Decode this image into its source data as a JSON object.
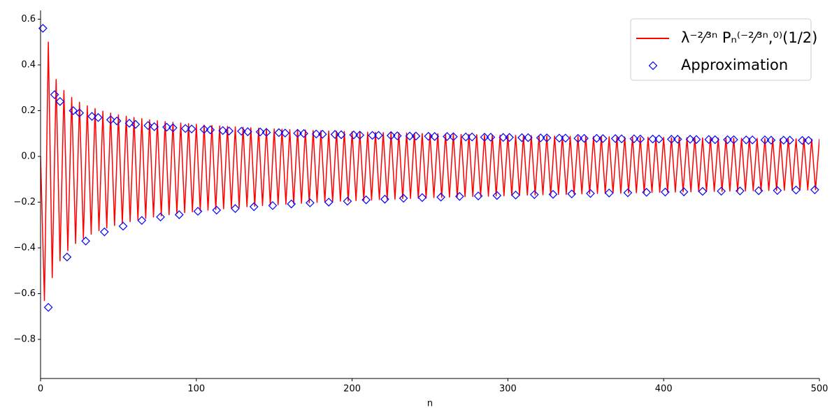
{
  "chart_data": {
    "type": "line",
    "xlabel": "n",
    "xlim": [
      0,
      500
    ],
    "xticks": [
      0,
      100,
      200,
      300,
      400,
      500
    ],
    "ylim": [
      -0.971,
      0.638
    ],
    "yticks": [
      {
        "value": -0.8,
        "label": "−0.8"
      },
      {
        "value": -0.6,
        "label": "−0.6"
      },
      {
        "value": -0.4,
        "label": "−0.4"
      },
      {
        "value": -0.2,
        "label": "−0.2"
      },
      {
        "value": 0,
        "label": "0.0"
      },
      0.2,
      0.4,
      0.6
    ],
    "legend": "upper right",
    "series": [
      {
        "name": "λ⁻²⁄³ⁿ Pₙ⁽⁻²⁄³ⁿ,⁰⁾(1/2)",
        "color": "#ff0000",
        "style": "line",
        "x": [
          0,
          2.5,
          5,
          7.5,
          10,
          12.5,
          15,
          17.5,
          20,
          22.5,
          25,
          27.5,
          30,
          32.5,
          35,
          37.5,
          40,
          42.5,
          45,
          47.5,
          50,
          52.5,
          55,
          57.5,
          60,
          62.5,
          65,
          67.5,
          70,
          72.5,
          75,
          77.5,
          80,
          82.5,
          85,
          87.5,
          90,
          92.5,
          95,
          97.5,
          100,
          102.5,
          105,
          107.5,
          110,
          112.5,
          115,
          117.5,
          120,
          122.5,
          125,
          127.5,
          130,
          132.5,
          135,
          137.5,
          140,
          142.5,
          145,
          147.5,
          150,
          152.5,
          155,
          157.5,
          160,
          162.5,
          165,
          167.5,
          170,
          172.5,
          175,
          177.5,
          180,
          182.5,
          185,
          187.5,
          190,
          192.5,
          195,
          197.5,
          200,
          202.5,
          205,
          207.5,
          210,
          212.5,
          215,
          217.5,
          220,
          222.5,
          225,
          227.5,
          230,
          232.5,
          235,
          237.5,
          240,
          242.5,
          245,
          247.5,
          250,
          252.5,
          255,
          257.5,
          260,
          262.5,
          265,
          267.5,
          270,
          272.5,
          275,
          277.5,
          280,
          282.5,
          285,
          287.5,
          290,
          292.5,
          295,
          297.5,
          300,
          302.5,
          305,
          307.5,
          310,
          312.5,
          315,
          317.5,
          320,
          322.5,
          325,
          327.5,
          330,
          332.5,
          335,
          337.5,
          340,
          342.5,
          345,
          347.5,
          350,
          352.5,
          355,
          357.5,
          360,
          362.5,
          365,
          367.5,
          370,
          372.5,
          375,
          377.5,
          380,
          382.5,
          385,
          387.5,
          390,
          392.5,
          395,
          397.5,
          400,
          402.5,
          405,
          407.5,
          410,
          412.5,
          415,
          417.5,
          420,
          422.5,
          425,
          427.5,
          430,
          432.5,
          435,
          437.5,
          440,
          442.5,
          445,
          447.5,
          450,
          452.5,
          455,
          457.5,
          460,
          462.5,
          465,
          467.5,
          470,
          472.5,
          475,
          477.5,
          480,
          482.5,
          485,
          487.5,
          490,
          492.5,
          495,
          497.5,
          500
        ],
        "values": [
          0,
          -0.63,
          0.5,
          -0.53,
          0.336,
          -0.457,
          0.288,
          -0.412,
          0.258,
          -0.381,
          0.237,
          -0.358,
          0.221,
          -0.34,
          0.209,
          -0.325,
          0.198,
          -0.313,
          0.189,
          -0.302,
          0.182,
          -0.293,
          0.176,
          -0.285,
          0.17,
          -0.277,
          0.165,
          -0.271,
          0.16,
          -0.265,
          0.156,
          -0.26,
          0.152,
          -0.255,
          0.149,
          -0.25,
          0.146,
          -0.246,
          0.143,
          -0.242,
          0.14,
          -0.238,
          0.137,
          -0.235,
          0.135,
          -0.232,
          0.133,
          -0.229,
          0.131,
          -0.226,
          0.129,
          -0.223,
          0.127,
          -0.22,
          0.125,
          -0.218,
          0.123,
          -0.215,
          0.122,
          -0.213,
          0.12,
          -0.211,
          0.119,
          -0.209,
          0.117,
          -0.207,
          0.116,
          -0.205,
          0.115,
          -0.203,
          0.113,
          -0.201,
          0.112,
          -0.199,
          0.111,
          -0.198,
          0.11,
          -0.196,
          0.109,
          -0.195,
          0.108,
          -0.193,
          0.107,
          -0.192,
          0.106,
          -0.191,
          0.105,
          -0.189,
          0.104,
          -0.188,
          0.104,
          -0.187,
          0.103,
          -0.185,
          0.102,
          -0.184,
          0.101,
          -0.183,
          0.1,
          -0.182,
          0.099,
          -0.18,
          0.099,
          -0.179,
          0.098,
          -0.178,
          0.097,
          -0.177,
          0.096,
          -0.176,
          0.096,
          -0.175,
          0.095,
          -0.174,
          0.094,
          -0.174,
          0.094,
          -0.173,
          0.093,
          -0.172,
          0.092,
          -0.171,
          0.092,
          -0.17,
          0.091,
          -0.169,
          0.091,
          -0.169,
          0.09,
          -0.168,
          0.09,
          -0.167,
          0.089,
          -0.166,
          0.089,
          -0.166,
          0.088,
          -0.165,
          0.088,
          -0.164,
          0.087,
          -0.163,
          0.087,
          -0.162,
          0.086,
          -0.162,
          0.086,
          -0.161,
          0.085,
          -0.161,
          0.085,
          -0.16,
          0.085,
          -0.159,
          0.084,
          -0.159,
          0.084,
          -0.158,
          0.083,
          -0.157,
          0.083,
          -0.156,
          0.082,
          -0.156,
          0.082,
          -0.155,
          0.082,
          -0.155,
          0.081,
          -0.154,
          0.081,
          -0.154,
          0.081,
          -0.153,
          0.08,
          -0.153,
          0.08,
          -0.152,
          0.08,
          -0.152,
          0.079,
          -0.151,
          0.079,
          -0.15,
          0.079,
          -0.15,
          0.078,
          -0.149,
          0.078,
          -0.149,
          0.078,
          -0.148,
          0.077,
          -0.148,
          0.077,
          -0.147,
          0.077,
          -0.147,
          0.076,
          -0.146,
          0.076
        ]
      },
      {
        "name": "Approximation",
        "color": "#0000ff",
        "style": "diamond",
        "x": [
          1.5,
          5,
          9,
          12.5,
          17,
          21,
          25,
          29,
          33,
          37,
          41,
          45,
          49,
          53,
          57,
          61,
          65,
          69,
          73,
          77,
          81,
          85,
          89,
          93,
          97,
          101,
          105,
          109,
          113,
          117,
          121,
          125,
          129,
          133,
          137,
          141,
          145,
          149,
          153,
          157,
          161,
          165,
          169,
          173,
          177,
          181,
          185,
          189,
          193,
          197,
          201,
          205,
          209,
          213,
          217,
          221,
          225,
          229,
          233,
          237,
          241,
          245,
          249,
          253,
          257,
          261,
          265,
          269,
          273,
          277,
          281,
          285,
          289,
          293,
          297,
          301,
          305,
          309,
          313,
          317,
          321,
          325,
          329,
          333,
          337,
          341,
          345,
          349,
          353,
          357,
          361,
          365,
          369,
          373,
          377,
          381,
          385,
          389,
          393,
          397,
          401,
          405,
          409,
          413,
          417,
          421,
          425,
          429,
          433,
          437,
          441,
          445,
          449,
          453,
          457,
          461,
          465,
          469,
          473,
          477,
          481,
          485,
          489,
          493,
          497
        ],
        "values": [
          0.56,
          -0.66,
          0.27,
          0.24,
          -0.44,
          0.2,
          0.19,
          -0.37,
          0.175,
          0.17,
          -0.33,
          0.16,
          0.155,
          -0.305,
          0.145,
          0.14,
          -0.28,
          0.135,
          0.13,
          -0.265,
          0.128,
          0.125,
          -0.255,
          0.122,
          0.12,
          -0.24,
          0.118,
          0.116,
          -0.235,
          0.113,
          0.111,
          -0.228,
          0.11,
          0.108,
          -0.22,
          0.107,
          0.105,
          -0.215,
          0.104,
          0.102,
          -0.208,
          0.101,
          0.1,
          -0.203,
          0.098,
          0.097,
          -0.2,
          0.096,
          0.095,
          -0.196,
          0.094,
          0.093,
          -0.19,
          0.092,
          0.092,
          -0.187,
          0.091,
          0.09,
          -0.183,
          0.089,
          0.089,
          -0.18,
          0.088,
          0.087,
          -0.178,
          0.087,
          0.086,
          -0.175,
          0.085,
          0.085,
          -0.173,
          0.084,
          0.084,
          -0.171,
          0.083,
          0.083,
          -0.169,
          0.082,
          0.082,
          -0.167,
          0.081,
          0.081,
          -0.166,
          0.08,
          0.08,
          -0.164,
          0.079,
          0.079,
          -0.162,
          0.079,
          0.078,
          -0.16,
          0.078,
          0.077,
          -0.159,
          0.077,
          0.076,
          -0.157,
          0.076,
          0.076,
          -0.156,
          0.075,
          0.075,
          -0.155,
          0.075,
          0.074,
          -0.153,
          0.074,
          0.073,
          -0.152,
          0.073,
          0.073,
          -0.151,
          0.072,
          0.072,
          -0.15,
          0.072,
          0.071,
          -0.149,
          0.071,
          0.071,
          -0.147,
          0.07,
          0.07,
          -0.146
        ]
      }
    ]
  }
}
